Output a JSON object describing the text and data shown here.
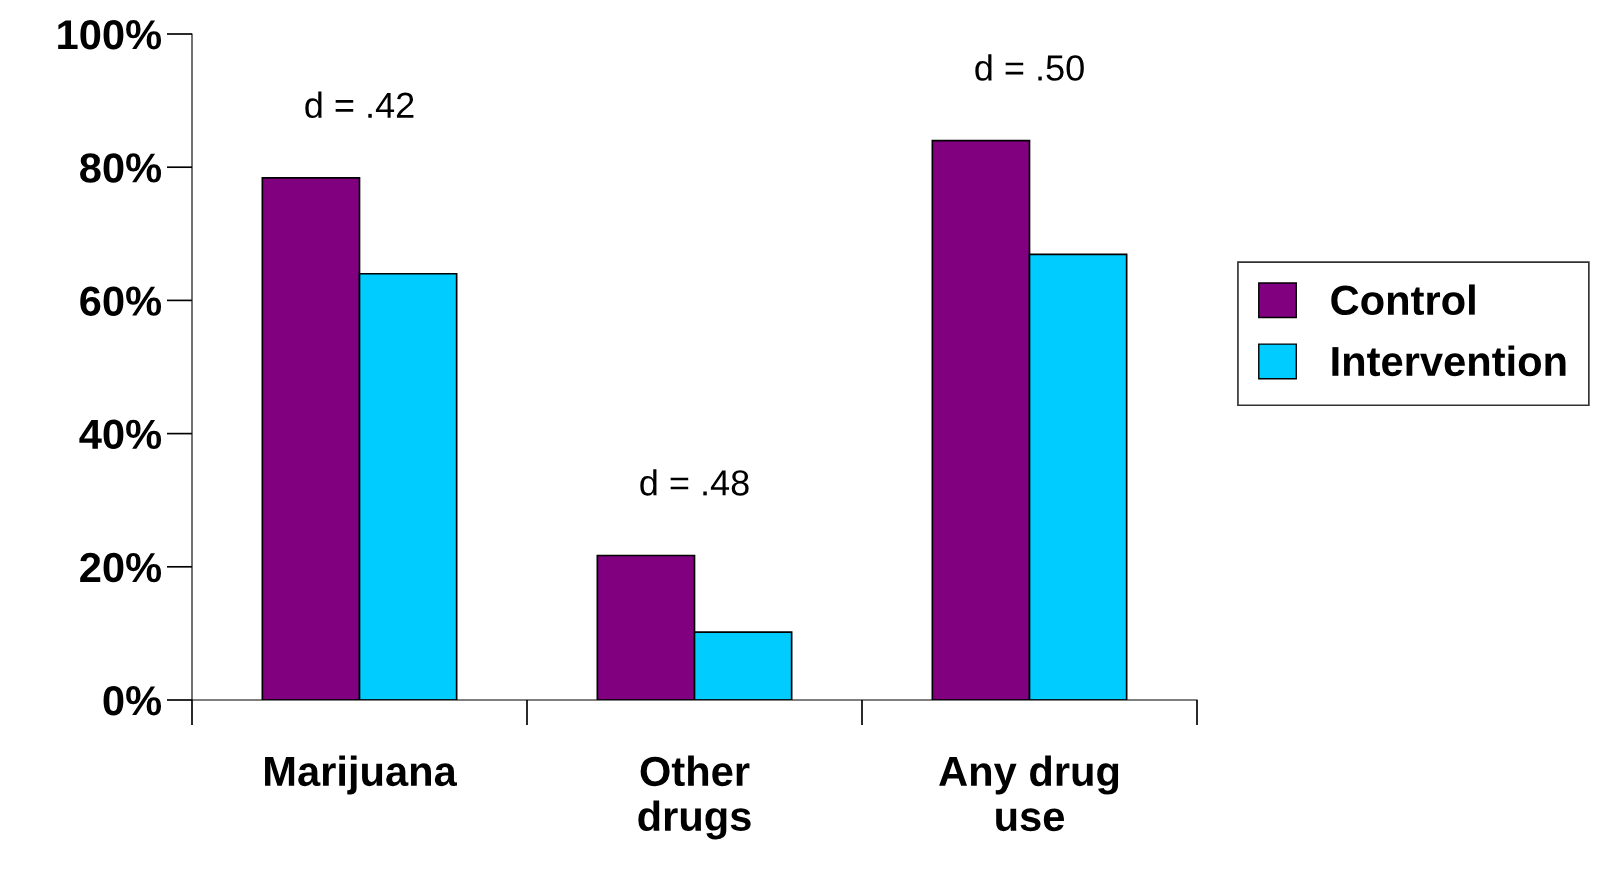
{
  "chart_data": {
    "type": "bar",
    "categories": [
      "Marijuana",
      "Other\ndrugs",
      "Any drug\nuse"
    ],
    "series": [
      {
        "name": "Control",
        "color": "#800080",
        "values": [
          78.4,
          21.7,
          84.0
        ]
      },
      {
        "name": "Intervention",
        "color": "#00ccff",
        "values": [
          64.0,
          10.2,
          66.9
        ]
      }
    ],
    "ylim": [
      0,
      100
    ],
    "yticks": [
      {
        "value": 0,
        "label": "0%"
      },
      {
        "value": 20,
        "label": "20%"
      },
      {
        "value": 40,
        "label": "40%"
      },
      {
        "value": 60,
        "label": "60%"
      },
      {
        "value": 80,
        "label": "80%"
      },
      {
        "value": 100,
        "label": "100%"
      }
    ],
    "annotations": [
      "d = .42",
      "d = .48",
      "d = .50"
    ],
    "legend": "right",
    "grid": false
  }
}
